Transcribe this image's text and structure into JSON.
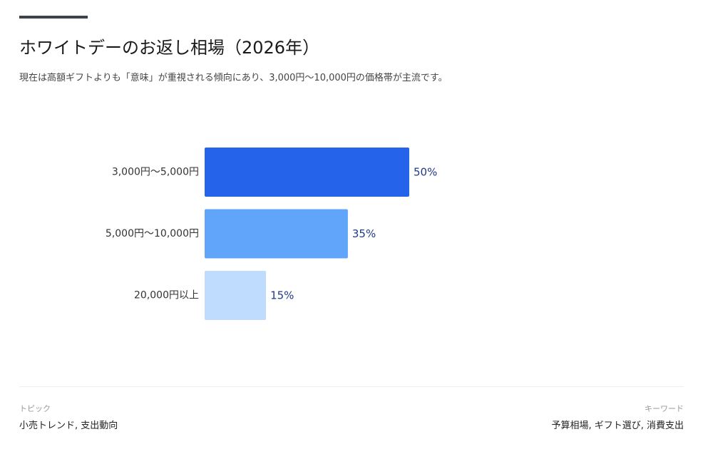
{
  "header": {
    "title": "ホワイトデーのお返し相場（2026年）",
    "subtitle": "現在は高額ギフトよりも「意味」が重視される傾向にあり、3,000円〜10,000円の価格帯が主流です。"
  },
  "chart_data": {
    "type": "bar",
    "orientation": "horizontal",
    "title": "ホワイトデーのお返し相場（2026年）",
    "categories": [
      "3,000円〜5,000円",
      "5,000円〜10,000円",
      "20,000円以上"
    ],
    "values": [
      50,
      35,
      15
    ],
    "value_labels": [
      "50%",
      "35%",
      "15%"
    ],
    "unit": "%",
    "colors": [
      "#2563eb",
      "#60a5fa",
      "#bfdbfe"
    ],
    "label_color": "#1e3a8a",
    "xlim": [
      0,
      100
    ],
    "grid": false,
    "legend": "none"
  },
  "footer": {
    "topic_label": "トピック",
    "topic_value": "小売トレンド, 支出動向",
    "keywords_label": "キーワード",
    "keywords_value": "予算相場, ギフト選び, 消費支出"
  }
}
